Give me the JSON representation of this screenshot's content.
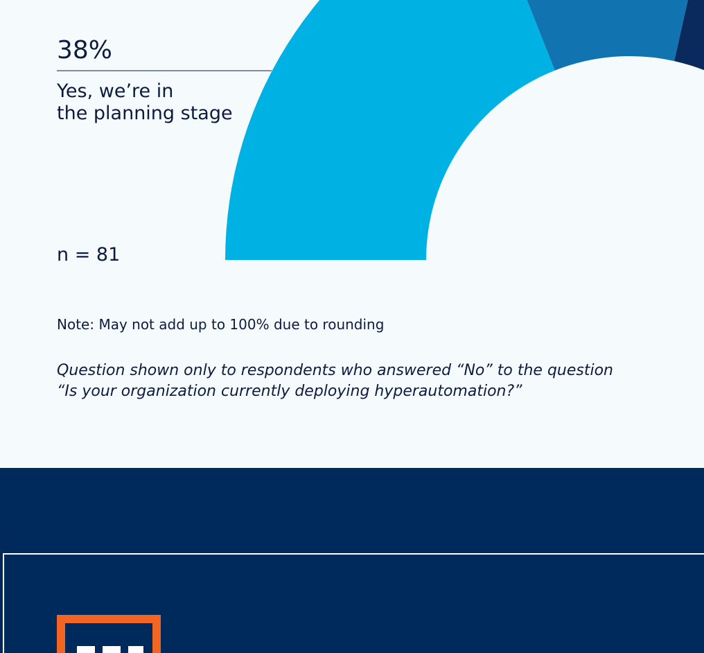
{
  "chart_data": {
    "type": "half-donut",
    "categories": [
      "Yes, we’re in the planning stage",
      null
    ],
    "values": [
      38,
      19
    ],
    "value_labels": [
      "38%",
      null
    ],
    "colors": [
      "#00b2e3",
      "#1173b0"
    ],
    "sample": "n = 81",
    "note": "Note: May not add up to 100% due to rounding",
    "question": [
      "Question shown only to respondents who answered “No” to the question",
      "“Is your organization currently deploying hyperautomation?”"
    ]
  }
}
